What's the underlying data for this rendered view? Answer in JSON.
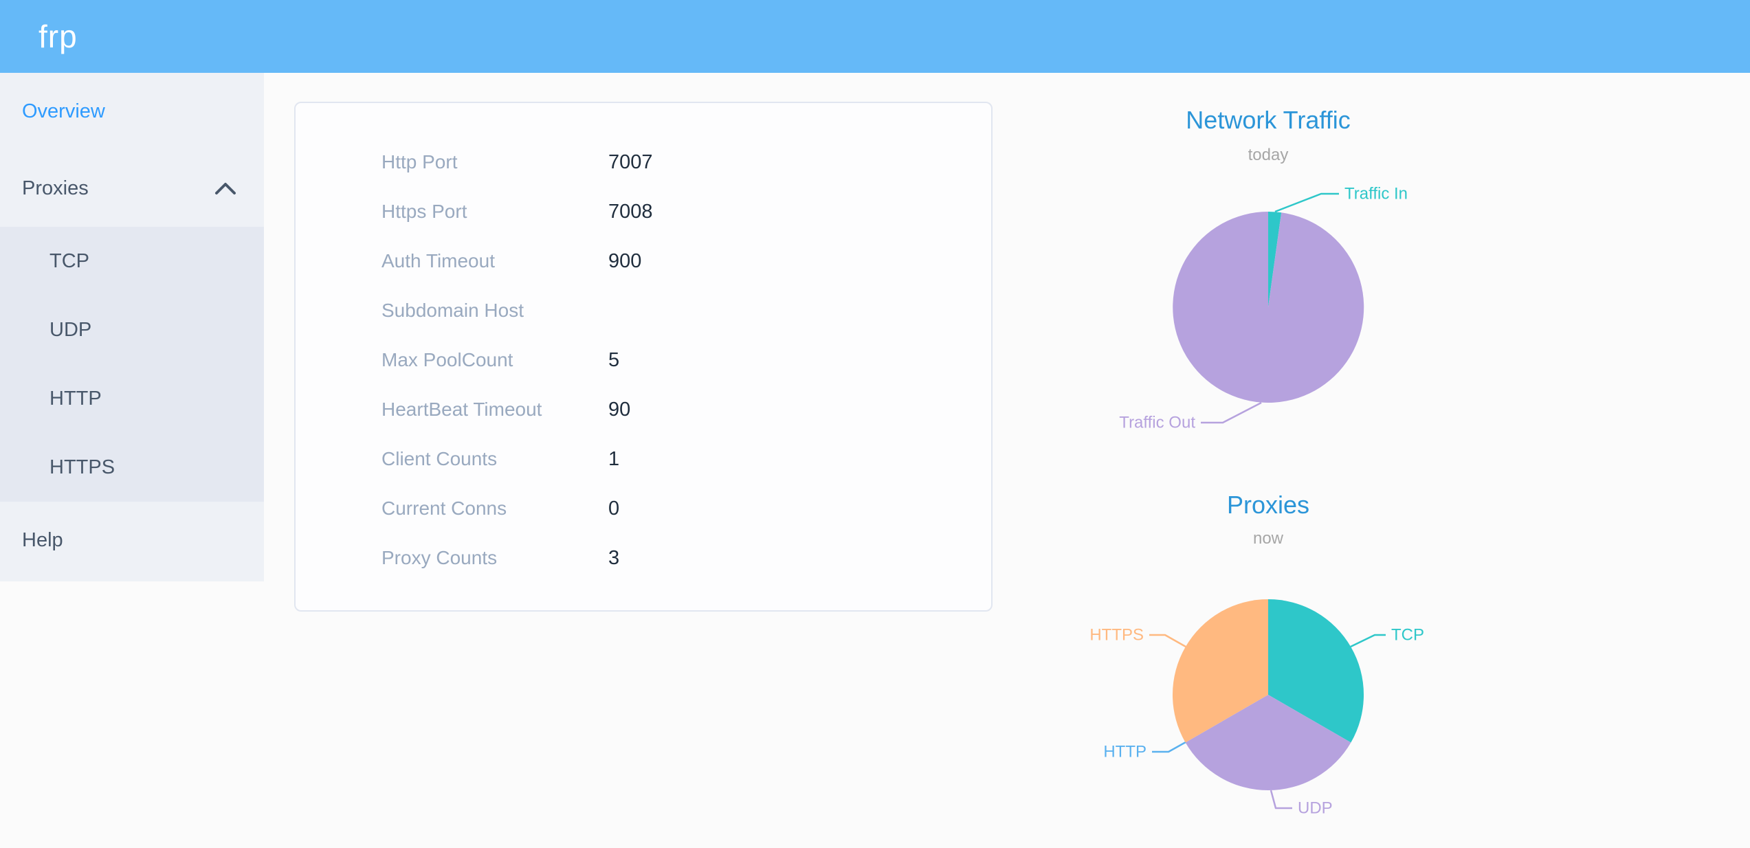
{
  "header": {
    "logo_text": "frp"
  },
  "sidebar": {
    "overview_label": "Overview",
    "proxies_label": "Proxies",
    "proxies_children": [
      "TCP",
      "UDP",
      "HTTP",
      "HTTPS"
    ],
    "help_label": "Help"
  },
  "server_info": {
    "rows": [
      {
        "label": "Http Port",
        "value": "7007"
      },
      {
        "label": "Https Port",
        "value": "7008"
      },
      {
        "label": "Auth Timeout",
        "value": "900"
      },
      {
        "label": "Subdomain Host",
        "value": ""
      },
      {
        "label": "Max PoolCount",
        "value": "5"
      },
      {
        "label": "HeartBeat Timeout",
        "value": "90"
      },
      {
        "label": "Client Counts",
        "value": "1"
      },
      {
        "label": "Current Conns",
        "value": "0"
      },
      {
        "label": "Proxy Counts",
        "value": "3"
      }
    ]
  },
  "chart_data": [
    {
      "type": "pie",
      "title": "Network Traffic",
      "subtitle": "today",
      "labels": [
        "Traffic In",
        "Traffic Out"
      ],
      "values_percent": [
        2.2,
        97.8
      ],
      "values_note": "no numeric labels shown in chart; shares estimated from arc angles",
      "colors": [
        "#2ec7c9",
        "#b6a2de"
      ],
      "legend_position": "none (callout labels on slices)",
      "start_angle": "12 o'clock, clockwise"
    },
    {
      "type": "pie",
      "title": "Proxies",
      "subtitle": "now",
      "labels": [
        "TCP",
        "UDP",
        "HTTP",
        "HTTPS"
      ],
      "values": [
        1,
        1,
        0,
        1
      ],
      "values_note": "three equal thirds, HTTP slice zero-width; total matches Proxy Counts = 3",
      "colors": [
        "#2ec7c9",
        "#b6a2de",
        "#5ab1ef",
        "#ffb980"
      ],
      "legend_position": "none (callout labels on slices)",
      "start_angle": "12 o'clock, clockwise"
    }
  ],
  "colors": {
    "header_blue": "#65b9f8",
    "sidebar_bg": "#eef1f6",
    "submenu_bg": "#e4e8f1",
    "sidebar_text": "#48576a",
    "active_menu_blue": "#2e9bff",
    "table_label_gray": "#99a9bf",
    "table_value_dark": "#1f2d3d",
    "chart_title_blue": "#2b95d8",
    "chart_subtitle_gray": "#a6a6a6",
    "pie_teal": "#2ec7c9",
    "pie_purple": "#b6a2de",
    "pie_blue": "#5ab1ef",
    "pie_orange": "#ffb980"
  }
}
